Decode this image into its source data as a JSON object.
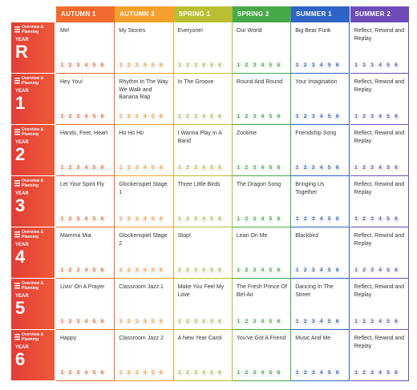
{
  "header": {
    "columns": [
      "AUTUMN 1",
      "AUTUMN 2",
      "SPRING 1",
      "SPRING 2",
      "SUMMER 1",
      "SUMMER 2"
    ]
  },
  "overview_label": "Overview & Planning",
  "year_label": "YEAR",
  "steps": [
    "1",
    "2",
    "3",
    "4",
    "5",
    "6"
  ],
  "rows": [
    {
      "year": "R",
      "units": [
        "Me!",
        "My Stories",
        "Everyone!",
        "Our World",
        "Big Bear Funk",
        "Reflect, Rewind and Replay"
      ]
    },
    {
      "year": "1",
      "units": [
        "Hey You!",
        "Rhythm In The Way We Walk and Banana Rap",
        "In The Groove",
        "Round And Round",
        "Your Imagination",
        "Reflect, Rewind and Replay"
      ]
    },
    {
      "year": "2",
      "units": [
        "Hands, Feet, Heart",
        "Ho Ho Ho",
        "I Wanna Play In A Band",
        "Zootime",
        "Friendship Song",
        "Reflect, Rewind and Replay"
      ]
    },
    {
      "year": "3",
      "units": [
        "Let Your Spirit Fly",
        "Glockenspiel Stage 1",
        "Three Little Birds",
        "The Dragon Song",
        "Bringing Us Together",
        "Reflect, Rewind and Replay"
      ]
    },
    {
      "year": "4",
      "units": [
        "Mamma Mia",
        "Glockenspiel Stage 2",
        "Stop!",
        "Lean On Me",
        "Blackbird",
        "Reflect, Rewind and Replay"
      ]
    },
    {
      "year": "5",
      "units": [
        "Livin' On A Prayer",
        "Classroom Jazz 1",
        "Make You Feel My Love",
        "The Fresh Prince Of Bel-Air",
        "Dancing In The Street",
        "Reflect, Rewind and Replay"
      ]
    },
    {
      "year": "6",
      "units": [
        "Happy",
        "Classroom Jazz 2",
        "A New Year Carol",
        "You've Got A Friend",
        "Music And Me",
        "Reflect, Rewind and Replay"
      ]
    }
  ]
}
